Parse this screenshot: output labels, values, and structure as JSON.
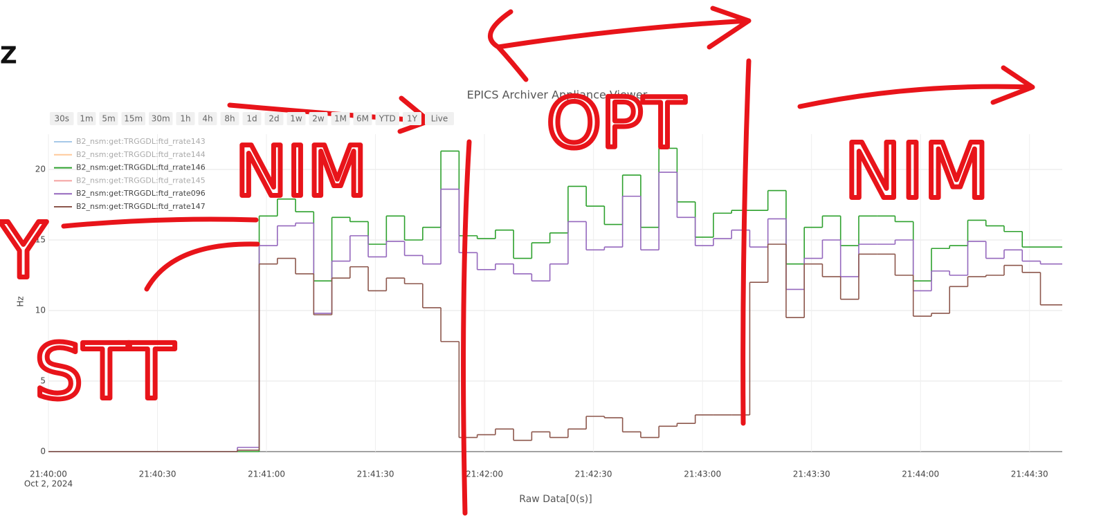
{
  "chart_data": {
    "type": "step",
    "title": "EPICS Archiver Appliance Viewer",
    "x_label": "Raw Data[0(s)]",
    "y_label": "Hz",
    "x_date": "Oct 2, 2024",
    "range_buttons": [
      "30s",
      "1m",
      "5m",
      "15m",
      "30m",
      "1h",
      "4h",
      "8h",
      "1d",
      "2d",
      "1w",
      "2w",
      "1M",
      "6M",
      "YTD",
      "1Y",
      "Live"
    ],
    "xlim": [
      "21:40:00",
      "21:44:39"
    ],
    "xticks": [
      "21:40:00",
      "21:40:30",
      "21:41:00",
      "21:41:30",
      "21:42:00",
      "21:42:30",
      "21:43:00",
      "21:43:30",
      "21:44:00",
      "21:44:30"
    ],
    "ylim": [
      0,
      22.5
    ],
    "yticks": [
      0,
      5,
      10,
      15,
      20
    ],
    "grid": true,
    "legend": "top-left",
    "x": [
      "21:40:00",
      "21:40:52",
      "21:40:58",
      "21:41:03",
      "21:41:08",
      "21:41:13",
      "21:41:18",
      "21:41:23",
      "21:41:28",
      "21:41:33",
      "21:41:38",
      "21:41:43",
      "21:41:48",
      "21:41:53",
      "21:41:58",
      "21:42:03",
      "21:42:08",
      "21:42:13",
      "21:42:18",
      "21:42:23",
      "21:42:28",
      "21:42:33",
      "21:42:38",
      "21:42:43",
      "21:42:48",
      "21:42:53",
      "21:42:58",
      "21:43:03",
      "21:43:08",
      "21:43:13",
      "21:43:18",
      "21:43:23",
      "21:43:28",
      "21:43:33",
      "21:43:38",
      "21:43:43",
      "21:43:48",
      "21:43:53",
      "21:43:58",
      "21:44:03",
      "21:44:08",
      "21:44:13",
      "21:44:18",
      "21:44:23",
      "21:44:28",
      "21:44:33"
    ],
    "series": [
      {
        "name": "B2_nsm:get:TRGGDL:ftd_rrate143",
        "color": "#a6c8e8",
        "visible": false
      },
      {
        "name": "B2_nsm:get:TRGGDL:ftd_rrate144",
        "color": "#ffc99a",
        "visible": false
      },
      {
        "name": "B2_nsm:get:TRGGDL:ftd_rrate146",
        "color": "#2ca02c",
        "visible": true,
        "values": [
          0,
          0,
          16.7,
          17.9,
          17.0,
          12.1,
          16.6,
          16.3,
          14.7,
          16.7,
          15.0,
          15.9,
          21.3,
          15.3,
          15.1,
          15.7,
          13.7,
          14.8,
          15.5,
          18.8,
          17.4,
          16.1,
          19.6,
          15.9,
          21.5,
          17.7,
          15.2,
          16.9,
          17.1,
          17.1,
          18.5,
          13.3,
          15.9,
          16.7,
          14.6,
          16.7,
          16.7,
          16.3,
          12.1,
          14.4,
          14.6,
          16.4,
          16.0,
          15.6,
          14.5,
          14.5
        ]
      },
      {
        "name": "B2_nsm:get:TRGGDL:ftd_rrate145",
        "color": "#f4a09f",
        "visible": false
      },
      {
        "name": "B2_nsm:get:TRGGDL:ftd_rrate096",
        "color": "#9467bd",
        "visible": true,
        "values": [
          0,
          0.3,
          14.6,
          16.0,
          16.2,
          9.8,
          13.5,
          15.3,
          13.8,
          14.9,
          13.9,
          13.3,
          18.6,
          14.1,
          12.9,
          13.3,
          12.6,
          12.1,
          13.3,
          16.3,
          14.3,
          14.5,
          18.1,
          14.3,
          19.8,
          16.6,
          14.6,
          15.1,
          15.7,
          14.5,
          16.5,
          11.5,
          13.7,
          15.0,
          12.4,
          14.7,
          14.7,
          15.0,
          11.4,
          12.8,
          12.5,
          14.9,
          13.7,
          14.3,
          13.5,
          13.3
        ]
      },
      {
        "name": "B2_nsm:get:TRGGDL:ftd_rrate147",
        "color": "#8c564b",
        "visible": true,
        "values": [
          0,
          0.1,
          13.3,
          13.7,
          12.6,
          9.7,
          12.3,
          13.1,
          11.4,
          12.3,
          11.9,
          10.2,
          7.8,
          1.0,
          1.2,
          1.6,
          0.8,
          1.4,
          1.0,
          1.6,
          2.5,
          2.4,
          1.4,
          1.0,
          1.8,
          2.0,
          2.6,
          2.6,
          2.6,
          12.0,
          14.7,
          9.5,
          13.3,
          12.4,
          10.8,
          14.0,
          14.0,
          12.5,
          9.6,
          9.8,
          11.7,
          12.4,
          12.5,
          13.2,
          12.7,
          10.4
        ]
      }
    ]
  },
  "annotations": {
    "corner": "Z",
    "axis": "Y",
    "left_region": "STT",
    "region_1": "NIM",
    "region_2": "OPT",
    "region_3": "NIM"
  }
}
